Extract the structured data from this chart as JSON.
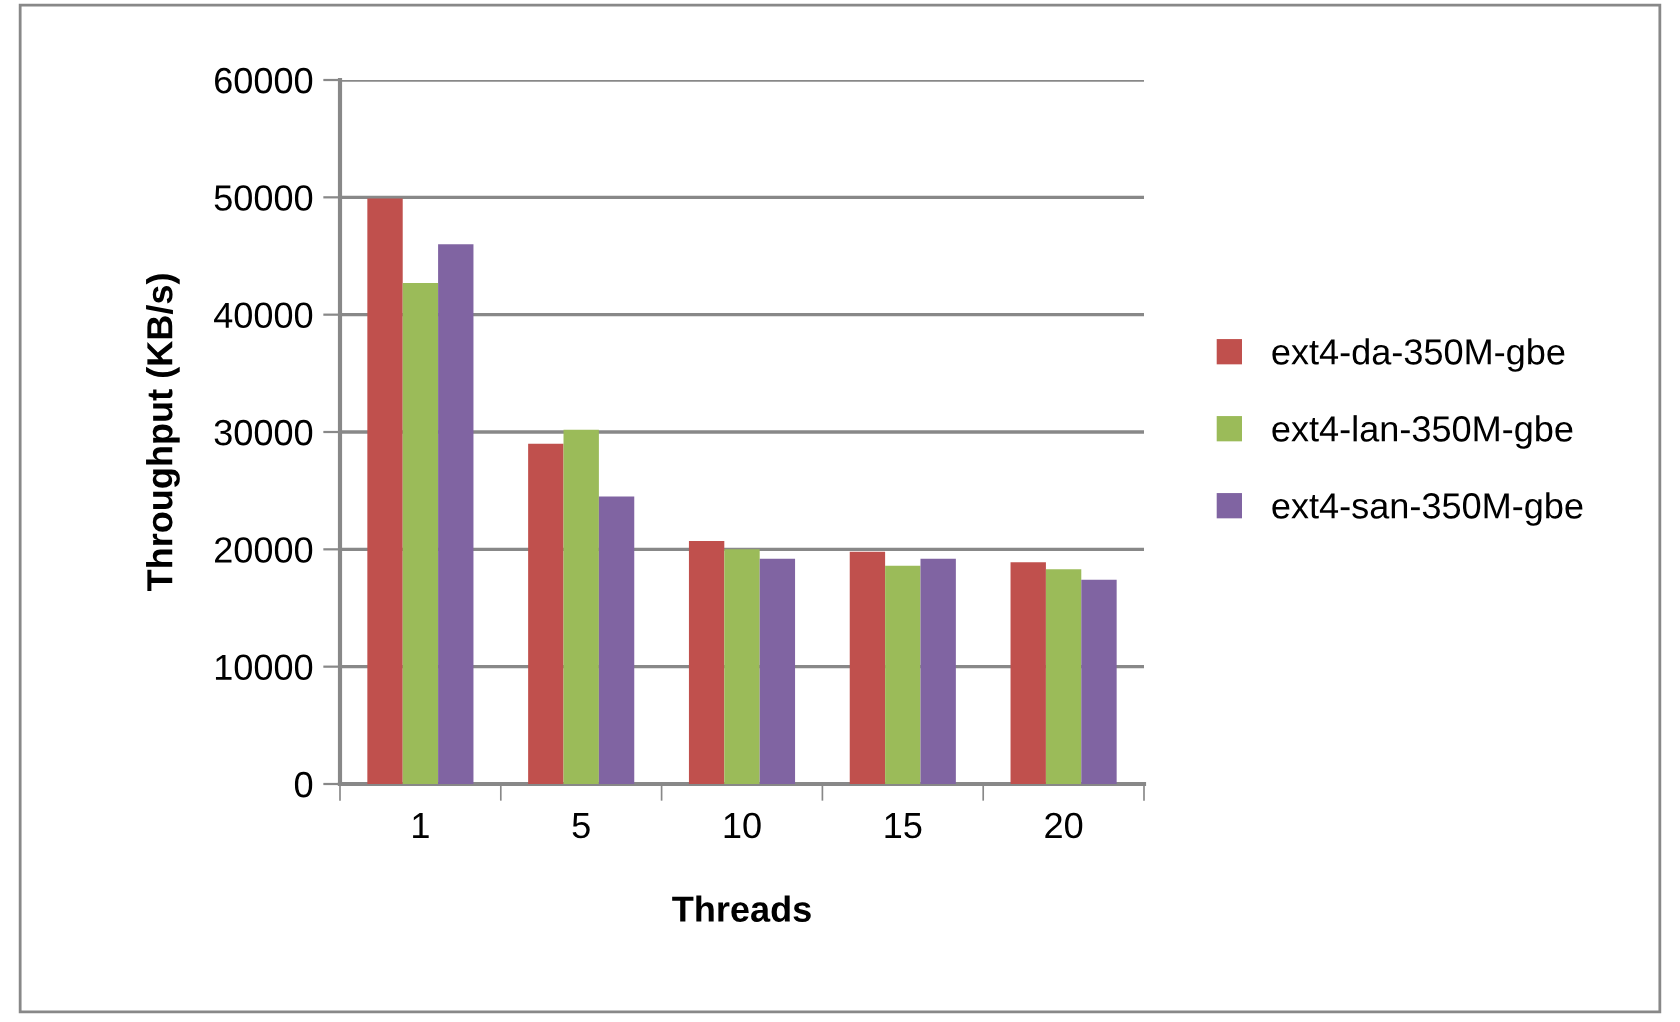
{
  "chart_data": {
    "type": "bar",
    "xlabel": "Threads",
    "ylabel": "Throughput (KB/s)",
    "categories": [
      "1",
      "5",
      "10",
      "15",
      "20"
    ],
    "series": [
      {
        "name": "ext4-da-350M-gbe",
        "color": "#c0504d",
        "values": [
          49900,
          29000,
          20700,
          19800,
          18900
        ]
      },
      {
        "name": "ext4-lan-350M-gbe",
        "color": "#9bbb59",
        "values": [
          42700,
          30200,
          20000,
          18600,
          18300
        ]
      },
      {
        "name": "ext4-san-350M-gbe",
        "color": "#8064a2",
        "values": [
          46000,
          24500,
          19200,
          19200,
          17400
        ]
      }
    ],
    "ylim": [
      0,
      60000
    ],
    "yticks": [
      0,
      10000,
      20000,
      30000,
      40000,
      50000,
      60000
    ],
    "grid": "y",
    "legend": "right"
  }
}
